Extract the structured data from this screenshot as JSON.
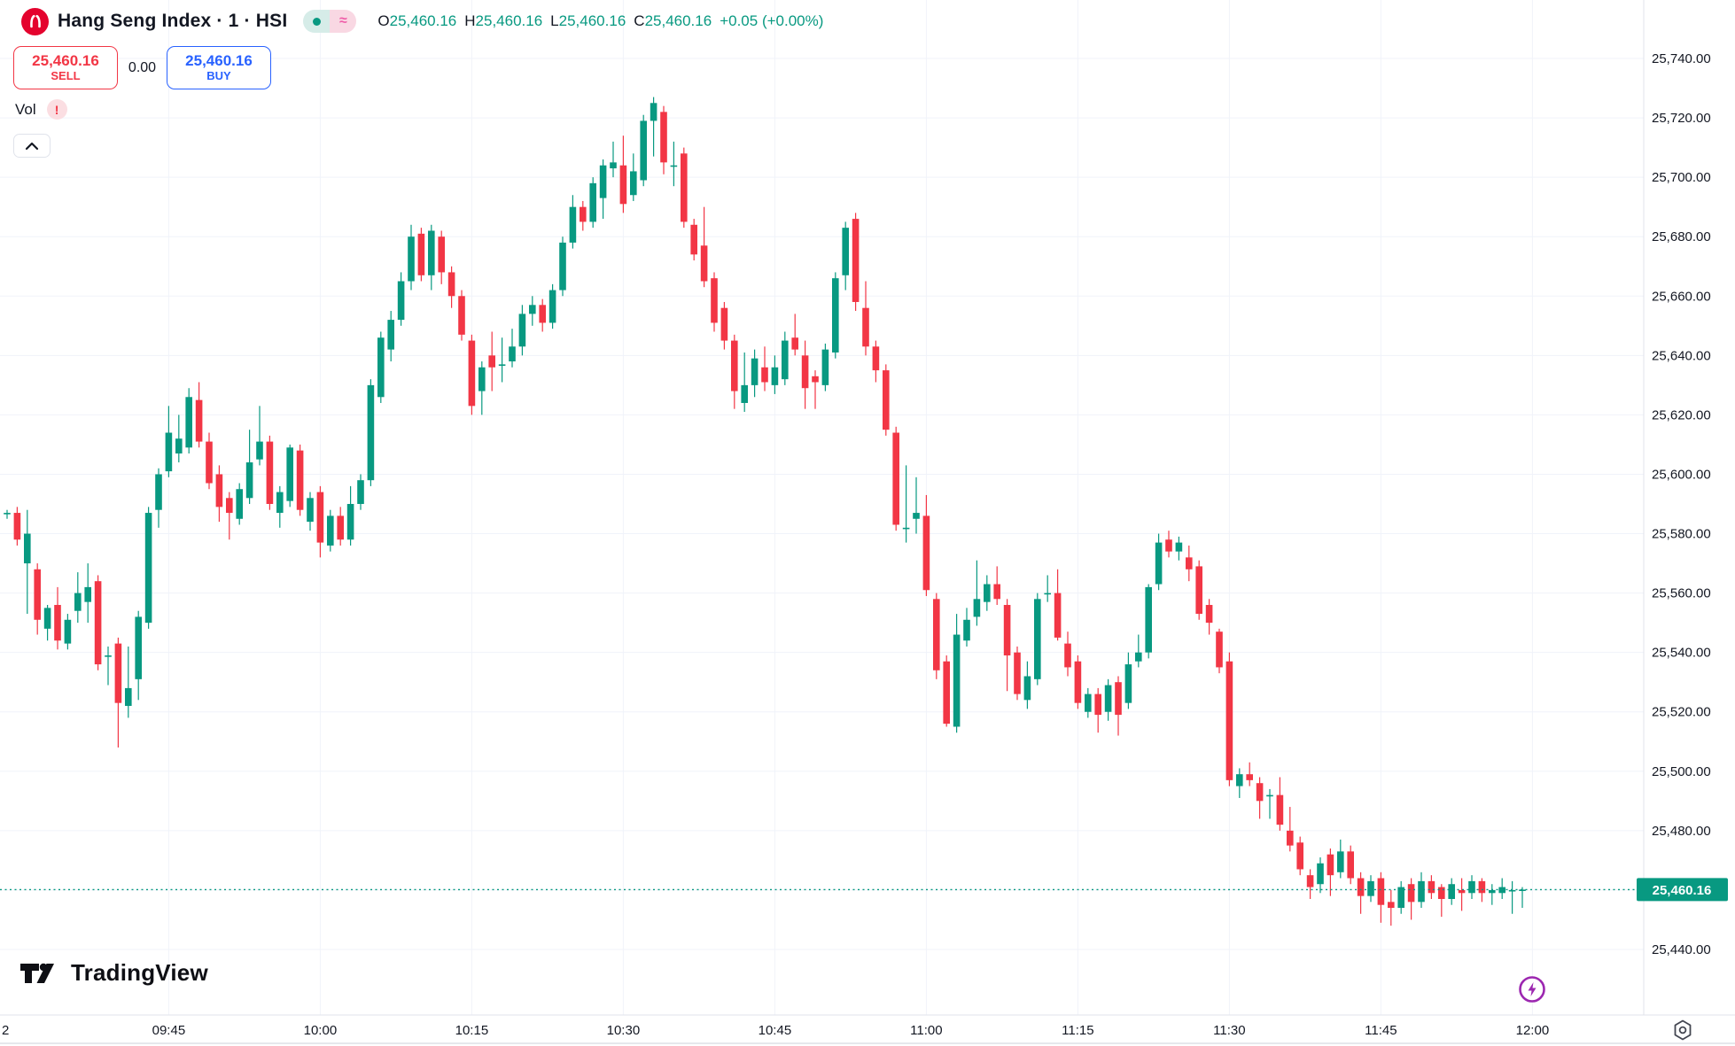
{
  "header": {
    "symbol_title": "Hang Seng Index · 1 · HSI",
    "logo_icon": "hsi-red-circle",
    "status_icons": [
      "live-dot",
      "approx-delayed"
    ],
    "approx_glyph": "≈",
    "ohlc": {
      "o_label": "O",
      "o": "25,460.16",
      "h_label": "H",
      "h": "25,460.16",
      "l_label": "L",
      "l": "25,460.16",
      "c_label": "C",
      "c": "25,460.16",
      "change": "+0.05 (+0.00%)"
    }
  },
  "order_panel": {
    "sell_price": "25,460.16",
    "sell_label": "SELL",
    "spread": "0.00",
    "buy_price": "25,460.16",
    "buy_label": "BUY"
  },
  "volume_row": {
    "label": "Vol",
    "warning": "!"
  },
  "footer": {
    "brand": "TradingView"
  },
  "price_axis": {
    "current_price_label": "25,460.16",
    "ticks": [
      {
        "v": 25740,
        "label": "25,740.00"
      },
      {
        "v": 25720,
        "label": "25,720.00"
      },
      {
        "v": 25700,
        "label": "25,700.00"
      },
      {
        "v": 25680,
        "label": "25,680.00"
      },
      {
        "v": 25660,
        "label": "25,660.00"
      },
      {
        "v": 25640,
        "label": "25,640.00"
      },
      {
        "v": 25620,
        "label": "25,620.00"
      },
      {
        "v": 25600,
        "label": "25,600.00"
      },
      {
        "v": 25580,
        "label": "25,580.00"
      },
      {
        "v": 25560,
        "label": "25,560.00"
      },
      {
        "v": 25540,
        "label": "25,540.00"
      },
      {
        "v": 25520,
        "label": "25,520.00"
      },
      {
        "v": 25500,
        "label": "25,500.00"
      },
      {
        "v": 25480,
        "label": "25,480.00"
      },
      {
        "v": 25460,
        "label": "25,460.00"
      },
      {
        "v": 25440,
        "label": "25,440.00"
      }
    ]
  },
  "time_axis": {
    "edge_label": "2",
    "ticks": [
      {
        "m": 16,
        "label": "09:45"
      },
      {
        "m": 31,
        "label": "10:00"
      },
      {
        "m": 46,
        "label": "10:15"
      },
      {
        "m": 61,
        "label": "10:30"
      },
      {
        "m": 76,
        "label": "10:45"
      },
      {
        "m": 91,
        "label": "11:00"
      },
      {
        "m": 106,
        "label": "11:15"
      },
      {
        "m": 121,
        "label": "11:30"
      },
      {
        "m": 136,
        "label": "11:45"
      },
      {
        "m": 151,
        "label": "12:00"
      }
    ]
  },
  "colors": {
    "up": "#089981",
    "down": "#f23645",
    "grid": "#f0f3fa",
    "axis_border": "#e0e3eb",
    "text": "#131722",
    "buy_blue": "#2962ff",
    "purple": "#9c27b0",
    "badge": "#089981"
  },
  "chart_data": {
    "type": "candlestick",
    "title": "Hang Seng Index 1-minute candlestick chart",
    "symbol": "HSI",
    "interval": "1",
    "ylim": [
      25440,
      25740
    ],
    "x_start_time": "09:29",
    "x_end_time": "11:59",
    "grid": true,
    "legend_position": "none",
    "current_price": 25460.16,
    "candles": [
      [
        "09:29",
        25587,
        25588,
        25585,
        25587
      ],
      [
        "09:30",
        25587,
        25589,
        25576,
        25578
      ],
      [
        "09:31",
        25570,
        25588,
        25553,
        25580
      ],
      [
        "09:32",
        25568,
        25570,
        25546,
        25551
      ],
      [
        "09:33",
        25548,
        25556,
        25544,
        25555
      ],
      [
        "09:34",
        25556,
        25562,
        25541,
        25544
      ],
      [
        "09:35",
        25543,
        25553,
        25541,
        25551
      ],
      [
        "09:36",
        25554,
        25567,
        25550,
        25560
      ],
      [
        "09:37",
        25557,
        25570,
        25550,
        25562
      ],
      [
        "09:38",
        25564,
        25566,
        25534,
        25536
      ],
      [
        "09:39",
        25539,
        25542,
        25529,
        25539
      ],
      [
        "09:40",
        25543,
        25545,
        25508,
        25523
      ],
      [
        "09:41",
        25522,
        25542,
        25518,
        25528
      ],
      [
        "09:42",
        25531,
        25554,
        25524,
        25552
      ],
      [
        "09:43",
        25550,
        25589,
        25548,
        25587
      ],
      [
        "09:44",
        25588,
        25602,
        25582,
        25600
      ],
      [
        "09:45",
        25601,
        25623,
        25599,
        25614
      ],
      [
        "09:46",
        25607,
        25620,
        25604,
        25612
      ],
      [
        "09:47",
        25609,
        25629,
        25607,
        25626
      ],
      [
        "09:48",
        25625,
        25631,
        25609,
        25611
      ],
      [
        "09:49",
        25611,
        25614,
        25595,
        25597
      ],
      [
        "09:50",
        25600,
        25603,
        25584,
        25589
      ],
      [
        "09:51",
        25592,
        25594,
        25578,
        25587
      ],
      [
        "09:52",
        25585,
        25597,
        25583,
        25595
      ],
      [
        "09:53",
        25592,
        25615,
        25590,
        25604
      ],
      [
        "09:54",
        25605,
        25623,
        25603,
        25611
      ],
      [
        "09:55",
        25611,
        25613,
        25588,
        25590
      ],
      [
        "09:56",
        25587,
        25596,
        25582,
        25594
      ],
      [
        "09:57",
        25591,
        25610,
        25589,
        25609
      ],
      [
        "09:58",
        25608,
        25610,
        25586,
        25588
      ],
      [
        "09:59",
        25584,
        25594,
        25581,
        25592
      ],
      [
        "10:00",
        25594,
        25596,
        25572,
        25577
      ],
      [
        "10:01",
        25576,
        25588,
        25574,
        25586
      ],
      [
        "10:02",
        25586,
        25589,
        25576,
        25578
      ],
      [
        "10:03",
        25578,
        25596,
        25576,
        25590
      ],
      [
        "10:04",
        25590,
        25600,
        25588,
        25598
      ],
      [
        "10:05",
        25598,
        25632,
        25596,
        25630
      ],
      [
        "10:06",
        25626,
        25648,
        25624,
        25646
      ],
      [
        "10:07",
        25642,
        25655,
        25638,
        25652
      ],
      [
        "10:08",
        25652,
        25668,
        25650,
        25665
      ],
      [
        "10:09",
        25665,
        25684,
        25662,
        25680
      ],
      [
        "10:10",
        25681,
        25683,
        25665,
        25667
      ],
      [
        "10:11",
        25667,
        25684,
        25662,
        25682
      ],
      [
        "10:12",
        25680,
        25682,
        25664,
        25668
      ],
      [
        "10:13",
        25668,
        25670,
        25656,
        25660
      ],
      [
        "10:14",
        25660,
        25662,
        25645,
        25647
      ],
      [
        "10:15",
        25645,
        25647,
        25620,
        25623
      ],
      [
        "10:16",
        25628,
        25638,
        25620,
        25636
      ],
      [
        "10:17",
        25640,
        25648,
        25628,
        25636
      ],
      [
        "10:18",
        25637,
        25646,
        25631,
        25637
      ],
      [
        "10:19",
        25638,
        25649,
        25636,
        25643
      ],
      [
        "10:20",
        25643,
        25657,
        25640,
        25654
      ],
      [
        "10:21",
        25654,
        25660,
        25650,
        25657
      ],
      [
        "10:22",
        25657,
        25659,
        25648,
        25651
      ],
      [
        "10:23",
        25651,
        25664,
        25649,
        25662
      ],
      [
        "10:24",
        25662,
        25680,
        25660,
        25678
      ],
      [
        "10:25",
        25678,
        25694,
        25676,
        25690
      ],
      [
        "10:26",
        25690,
        25692,
        25682,
        25685
      ],
      [
        "10:27",
        25685,
        25700,
        25683,
        25698
      ],
      [
        "10:28",
        25693,
        25706,
        25686,
        25704
      ],
      [
        "10:29",
        25703,
        25712,
        25700,
        25705
      ],
      [
        "10:30",
        25704,
        25714,
        25688,
        25691
      ],
      [
        "10:31",
        25694,
        25708,
        25692,
        25702
      ],
      [
        "10:32",
        25699,
        25721,
        25697,
        25719
      ],
      [
        "10:33",
        25719,
        25727,
        25707,
        25725
      ],
      [
        "10:34",
        25722,
        25724,
        25701,
        25705
      ],
      [
        "10:35",
        25704,
        25712,
        25697,
        25704
      ],
      [
        "10:36",
        25708,
        25710,
        25683,
        25685
      ],
      [
        "10:37",
        25684,
        25686,
        25672,
        25674
      ],
      [
        "10:38",
        25677,
        25690,
        25663,
        25665
      ],
      [
        "10:39",
        25666,
        25668,
        25648,
        25651
      ],
      [
        "10:40",
        25656,
        25658,
        25642,
        25645
      ],
      [
        "10:41",
        25645,
        25647,
        25622,
        25628
      ],
      [
        "10:42",
        25624,
        25641,
        25621,
        25630
      ],
      [
        "10:43",
        25630,
        25642,
        25626,
        25639
      ],
      [
        "10:44",
        25636,
        25643,
        25628,
        25631
      ],
      [
        "10:45",
        25630,
        25640,
        25627,
        25636
      ],
      [
        "10:46",
        25632,
        25648,
        25630,
        25645
      ],
      [
        "10:47",
        25646,
        25654,
        25640,
        25642
      ],
      [
        "10:48",
        25640,
        25645,
        25622,
        25629
      ],
      [
        "10:49",
        25633,
        25635,
        25622,
        25631
      ],
      [
        "10:50",
        25630,
        25644,
        25628,
        25642
      ],
      [
        "10:51",
        25641,
        25668,
        25639,
        25666
      ],
      [
        "10:52",
        25667,
        25685,
        25662,
        25683
      ],
      [
        "10:53",
        25686,
        25688,
        25655,
        25658
      ],
      [
        "10:54",
        25656,
        25665,
        25640,
        25643
      ],
      [
        "10:55",
        25643,
        25645,
        25631,
        25635
      ],
      [
        "10:56",
        25635,
        25637,
        25613,
        25615
      ],
      [
        "10:57",
        25614,
        25616,
        25581,
        25583
      ],
      [
        "10:58",
        25582,
        25603,
        25577,
        25582
      ],
      [
        "10:59",
        25585,
        25599,
        25580,
        25587
      ],
      [
        "11:00",
        25586,
        25593,
        25559,
        25561
      ],
      [
        "11:01",
        25558,
        25560,
        25531,
        25534
      ],
      [
        "11:02",
        25537,
        25539,
        25515,
        25516
      ],
      [
        "11:03",
        25515,
        25553,
        25513,
        25546
      ],
      [
        "11:04",
        25544,
        25555,
        25542,
        25551
      ],
      [
        "11:05",
        25552,
        25571,
        25549,
        25558
      ],
      [
        "11:06",
        25557,
        25566,
        25554,
        25563
      ],
      [
        "11:07",
        25563,
        25569,
        25556,
        25558
      ],
      [
        "11:08",
        25556,
        25558,
        25527,
        25539
      ],
      [
        "11:09",
        25540,
        25542,
        25524,
        25526
      ],
      [
        "11:10",
        25524,
        25537,
        25521,
        25532
      ],
      [
        "11:11",
        25531,
        25560,
        25529,
        25558
      ],
      [
        "11:12",
        25560,
        25566,
        25557,
        25560
      ],
      [
        "11:13",
        25560,
        25568,
        25544,
        25545
      ],
      [
        "11:14",
        25543,
        25547,
        25532,
        25535
      ],
      [
        "11:15",
        25537,
        25539,
        25521,
        25523
      ],
      [
        "11:16",
        25520,
        25528,
        25518,
        25526
      ],
      [
        "11:17",
        25526,
        25528,
        25513,
        25519
      ],
      [
        "11:18",
        25520,
        25531,
        25517,
        25529
      ],
      [
        "11:19",
        25530,
        25532,
        25512,
        25519
      ],
      [
        "11:20",
        25523,
        25540,
        25521,
        25536
      ],
      [
        "11:21",
        25537,
        25546,
        25535,
        25540
      ],
      [
        "11:22",
        25540,
        25563,
        25538,
        25562
      ],
      [
        "11:23",
        25563,
        25580,
        25561,
        25577
      ],
      [
        "11:24",
        25578,
        25581,
        25572,
        25574
      ],
      [
        "11:25",
        25574,
        25579,
        25571,
        25577
      ],
      [
        "11:26",
        25572,
        25576,
        25564,
        25568
      ],
      [
        "11:27",
        25569,
        25571,
        25551,
        25553
      ],
      [
        "11:28",
        25556,
        25558,
        25546,
        25550
      ],
      [
        "11:29",
        25547,
        25548,
        25533,
        25535
      ],
      [
        "11:30",
        25537,
        25540,
        25495,
        25497
      ],
      [
        "11:31",
        25495,
        25501,
        25491,
        25499
      ],
      [
        "11:32",
        25499,
        25503,
        25495,
        25497
      ],
      [
        "11:33",
        25496,
        25498,
        25484,
        25490
      ],
      [
        "11:34",
        25492,
        25494,
        25484,
        25492
      ],
      [
        "11:35",
        25492,
        25498,
        25480,
        25482
      ],
      [
        "11:36",
        25480,
        25488,
        25473,
        25475
      ],
      [
        "11:37",
        25476,
        25478,
        25465,
        25467
      ],
      [
        "11:38",
        25465,
        25467,
        25457,
        25461
      ],
      [
        "11:39",
        25462,
        25471,
        25459,
        25469
      ],
      [
        "11:40",
        25472,
        25474,
        25458,
        25465
      ],
      [
        "11:41",
        25466,
        25477,
        25464,
        25473
      ],
      [
        "11:42",
        25473,
        25475,
        25462,
        25464
      ],
      [
        "11:43",
        25464,
        25466,
        25452,
        25458
      ],
      [
        "11:44",
        25458,
        25465,
        25456,
        25463
      ],
      [
        "11:45",
        25464,
        25466,
        25449,
        25455
      ],
      [
        "11:46",
        25456,
        25460,
        25448,
        25454
      ],
      [
        "11:47",
        25454,
        25463,
        25452,
        25461
      ],
      [
        "11:48",
        25462,
        25464,
        25450,
        25456
      ],
      [
        "11:49",
        25456,
        25466,
        25454,
        25463
      ],
      [
        "11:50",
        25463,
        25465,
        25457,
        25459
      ],
      [
        "11:51",
        25461,
        25462,
        25451,
        25457
      ],
      [
        "11:52",
        25457,
        25464,
        25455,
        25462
      ],
      [
        "11:53",
        25460,
        25464,
        25453,
        25459
      ],
      [
        "11:54",
        25459,
        25465,
        25457,
        25463
      ],
      [
        "11:55",
        25463,
        25464,
        25456,
        25459
      ],
      [
        "11:56",
        25459,
        25462,
        25455,
        25460
      ],
      [
        "11:57",
        25459,
        25464,
        25457,
        25461
      ],
      [
        "11:58",
        25460,
        25463,
        25452,
        25460
      ],
      [
        "11:59",
        25460,
        25461,
        25454,
        25460.16
      ]
    ]
  }
}
